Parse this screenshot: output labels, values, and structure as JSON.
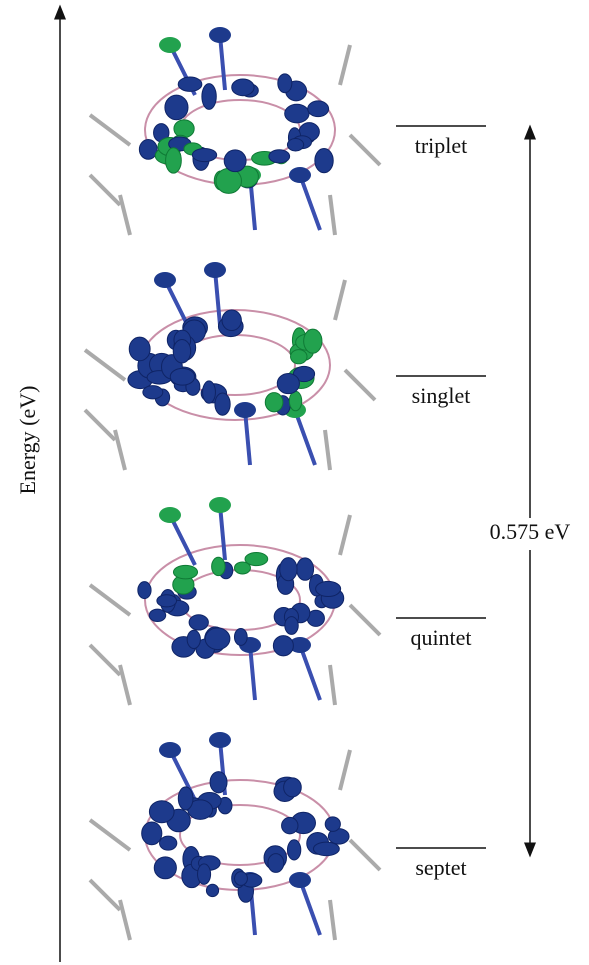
{
  "axis_label": "Energy (eV)",
  "states": [
    {
      "label": "triplet"
    },
    {
      "label": "singlet"
    },
    {
      "label": "quintet"
    },
    {
      "label": "septet"
    }
  ],
  "gap_label": "0.575 eV"
}
